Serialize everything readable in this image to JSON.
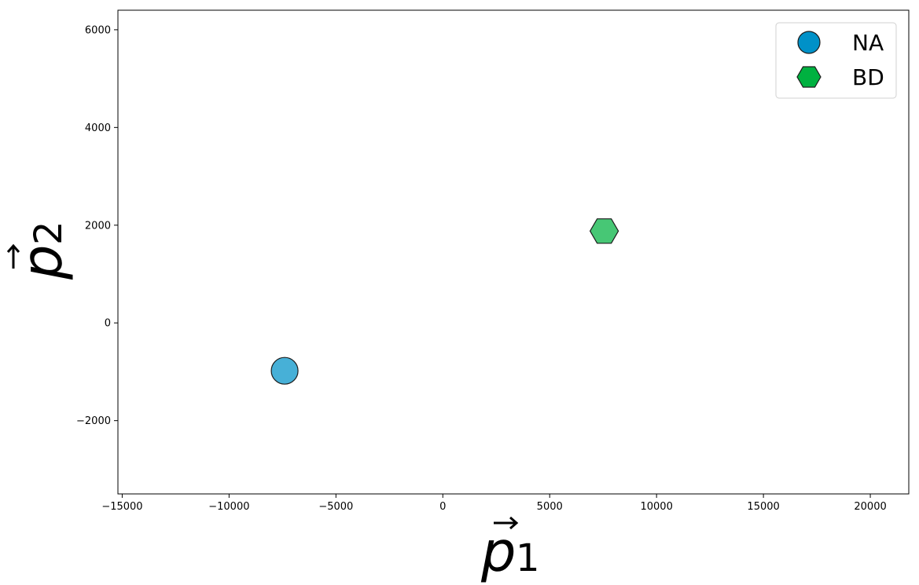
{
  "chart_data": {
    "type": "scatter",
    "xlabel": "p",
    "xlabel_subscript": "1",
    "ylabel": "p",
    "ylabel_subscript": "2",
    "xlim": [
      -15200,
      21800
    ],
    "ylim": [
      -3500,
      6400
    ],
    "xticks": [
      -15000,
      -10000,
      -5000,
      0,
      5000,
      10000,
      15000,
      20000
    ],
    "xtick_labels": [
      "−15000",
      "−10000",
      "−5000",
      "0",
      "5000",
      "10000",
      "15000",
      "20000"
    ],
    "yticks": [
      -2000,
      0,
      2000,
      4000,
      6000
    ],
    "ytick_labels": [
      "−2000",
      "0",
      "2000",
      "4000",
      "6000"
    ],
    "grid": false,
    "legend_position": "top-right",
    "series": [
      {
        "name": "NA",
        "marker": "circle",
        "color": "#0091c8",
        "points": [
          {
            "x": -7400,
            "y": -980
          }
        ]
      },
      {
        "name": "BD",
        "marker": "hexagon",
        "color": "#00b140",
        "points": [
          {
            "x": 7550,
            "y": 1880
          }
        ]
      }
    ]
  }
}
